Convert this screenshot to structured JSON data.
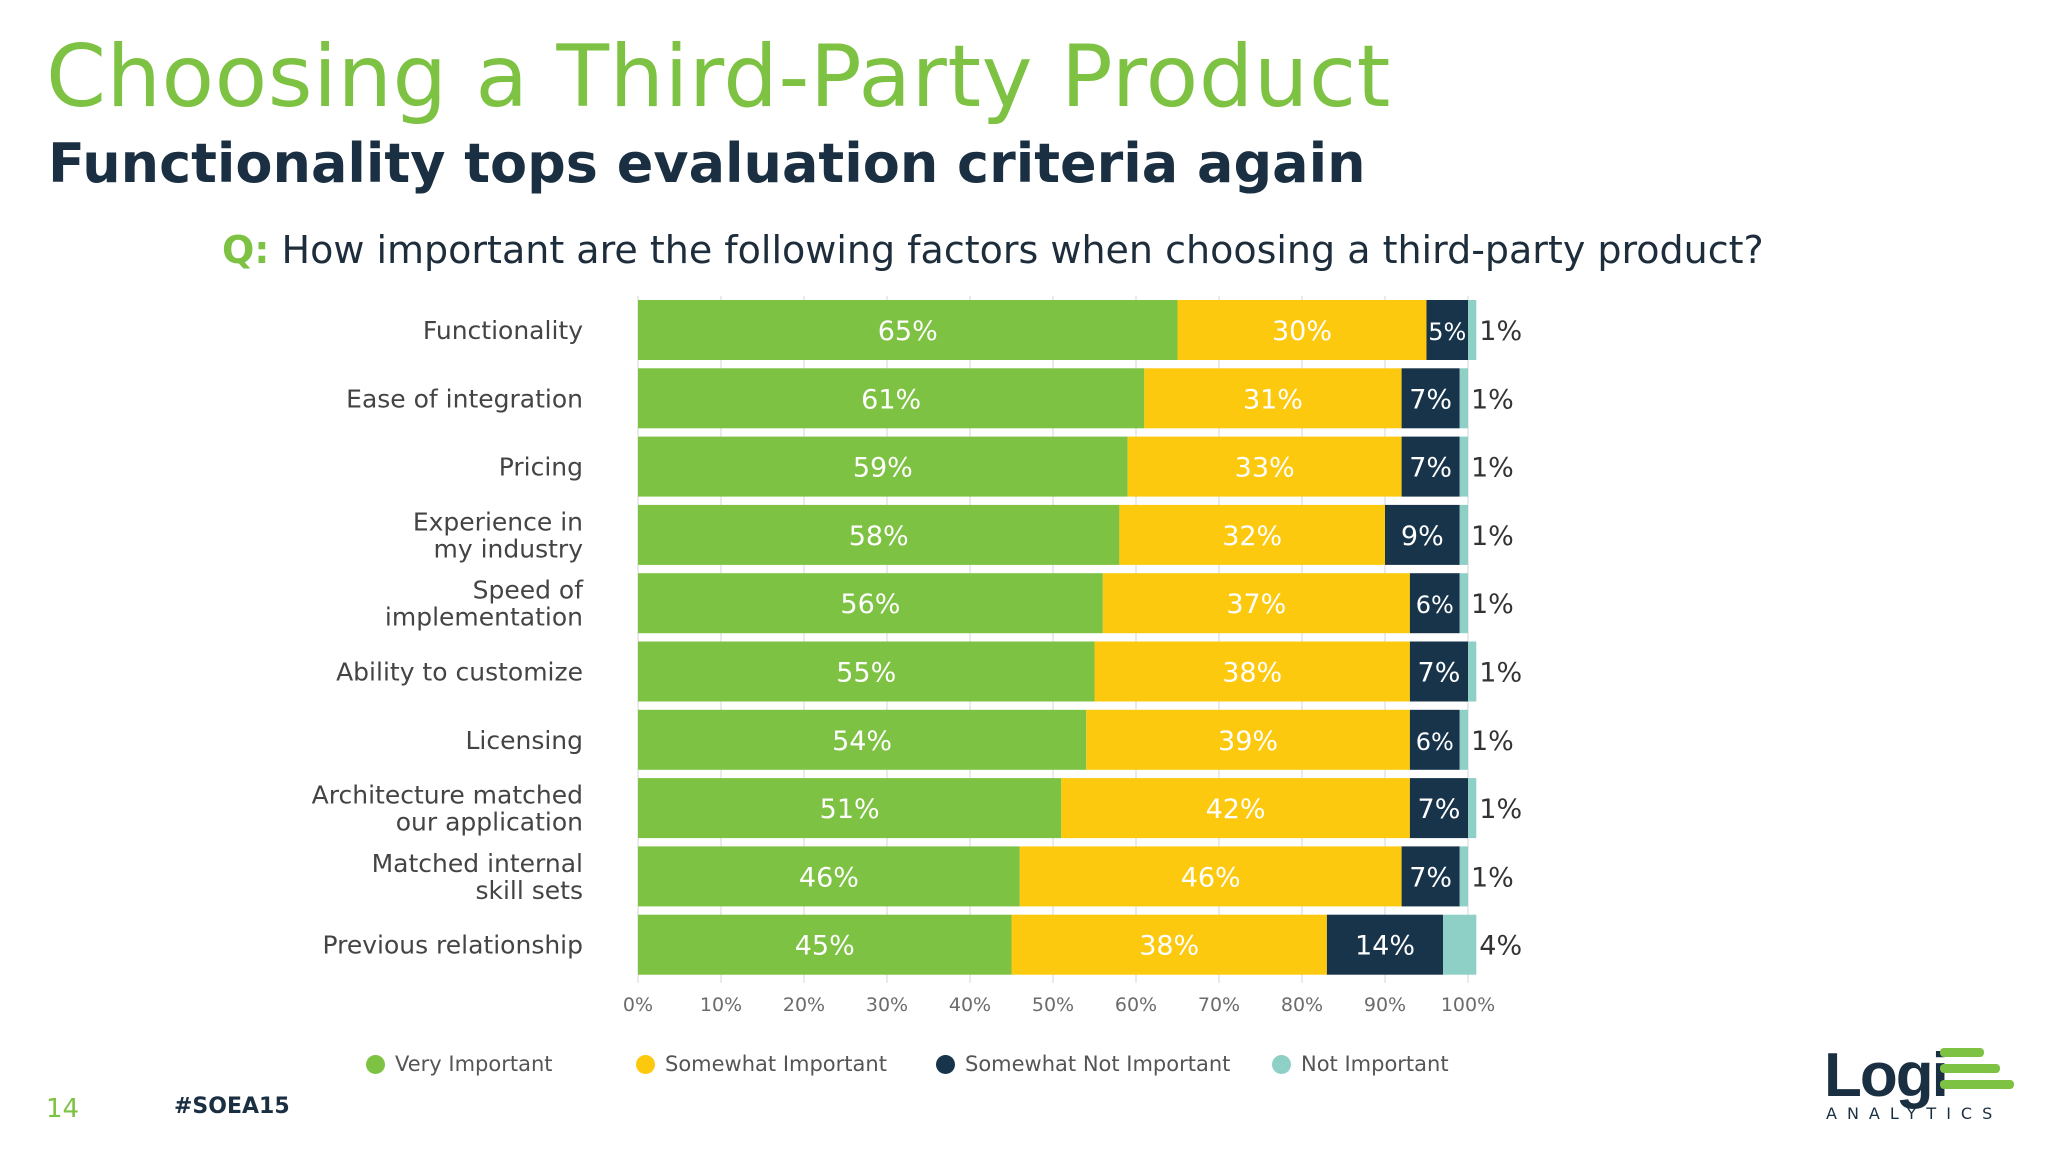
{
  "slide": {
    "title": "Choosing a Third-Party Product",
    "subtitle": "Functionality tops evaluation criteria again",
    "question_prefix": "Q:",
    "question_text": "How important are the following factors when choosing a third-party product?",
    "page_number": "14",
    "hashtag": "#SOEA15",
    "logo_text": "Logi",
    "logo_subtext": "ANALYTICS"
  },
  "colors": {
    "brand_green": "#7dc242",
    "very_important": "#7dc242",
    "somewhat_important": "#fdc90e",
    "somewhat_not_important": "#17344a",
    "not_important": "#8ecfc6",
    "grid": "#e3e3e3",
    "text": "#3d3d3d"
  },
  "chart_data": {
    "type": "bar",
    "orientation": "horizontal",
    "stacked": true,
    "categories": [
      [
        "Functionality"
      ],
      [
        "Ease of integration"
      ],
      [
        "Pricing"
      ],
      [
        "Experience in",
        "my industry"
      ],
      [
        "Speed of",
        "implementation"
      ],
      [
        "Ability to customize"
      ],
      [
        "Licensing"
      ],
      [
        "Architecture matched",
        "our application"
      ],
      [
        "Matched internal",
        "skill sets"
      ],
      [
        "Previous relationship"
      ]
    ],
    "series": [
      {
        "name": "Very Important",
        "color": "#7dc242",
        "values": [
          65,
          61,
          59,
          58,
          56,
          55,
          54,
          51,
          46,
          45
        ]
      },
      {
        "name": "Somewhat Important",
        "color": "#fdc90e",
        "values": [
          30,
          31,
          33,
          32,
          37,
          38,
          39,
          42,
          46,
          38
        ]
      },
      {
        "name": "Somewhat Not Important",
        "color": "#17344a",
        "values": [
          5,
          7,
          7,
          9,
          6,
          7,
          6,
          7,
          7,
          14
        ]
      },
      {
        "name": "Not Important",
        "color": "#8ecfc6",
        "values": [
          1,
          1,
          1,
          1,
          1,
          1,
          1,
          1,
          1,
          4
        ]
      }
    ],
    "xlim": [
      0,
      100
    ],
    "xticks": [
      "0%",
      "10%",
      "20%",
      "30%",
      "40%",
      "50%",
      "60%",
      "70%",
      "80%",
      "90%",
      "100%"
    ],
    "grid": true,
    "legend_position": "bottom"
  }
}
